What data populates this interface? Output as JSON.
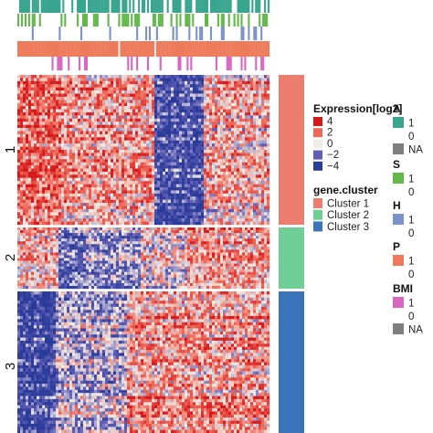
{
  "chart_data": {
    "type": "heatmap",
    "row_split_labels": [
      "1",
      "2",
      "3"
    ],
    "row_clusters": [
      {
        "label": "1",
        "name": "Cluster 1",
        "pattern": "red-left / blue-middle block"
      },
      {
        "label": "2",
        "name": "Cluster 2",
        "pattern": "mixed red/blue"
      },
      {
        "label": "3",
        "name": "Cluster 3",
        "pattern": "blue-left / red-right"
      }
    ],
    "column_annotations": [
      "A",
      "S",
      "H",
      "P",
      "BMI"
    ],
    "legends": {
      "expression": {
        "title": "Expression[log2]",
        "labels": [
          "4",
          "2",
          "0",
          "−2",
          "−4"
        ],
        "colors": [
          "#d7191c",
          "#ef6a5a",
          "#f2ece6",
          "#5f5fb5",
          "#2b3b9a"
        ]
      },
      "gene_cluster": {
        "title": "gene.cluster",
        "labels": [
          "Cluster 1",
          "Cluster 2",
          "Cluster 3"
        ],
        "colors": [
          "#ed7d6f",
          "#6fcf97",
          "#3c74bc"
        ]
      },
      "A": {
        "title": "A",
        "labels": [
          "1",
          "0",
          "NA"
        ],
        "colors": [
          "#3aa58f",
          "#ffffff",
          "#7f7f7f"
        ]
      },
      "S": {
        "title": "S",
        "labels": [
          "1",
          "0"
        ],
        "colors": [
          "#62b94a",
          "#ffffff"
        ]
      },
      "H": {
        "title": "H",
        "labels": [
          "1",
          "0"
        ],
        "colors": [
          "#7c92c8",
          "#ffffff"
        ]
      },
      "P": {
        "title": "P",
        "labels": [
          "1",
          "0"
        ],
        "colors": [
          "#ee7b5c",
          "#ffffff"
        ]
      },
      "BMI": {
        "title": "BMI",
        "labels": [
          "1",
          "0",
          "NA"
        ],
        "colors": [
          "#d867c2",
          "#ffffff",
          "#7f7f7f"
        ]
      }
    }
  }
}
